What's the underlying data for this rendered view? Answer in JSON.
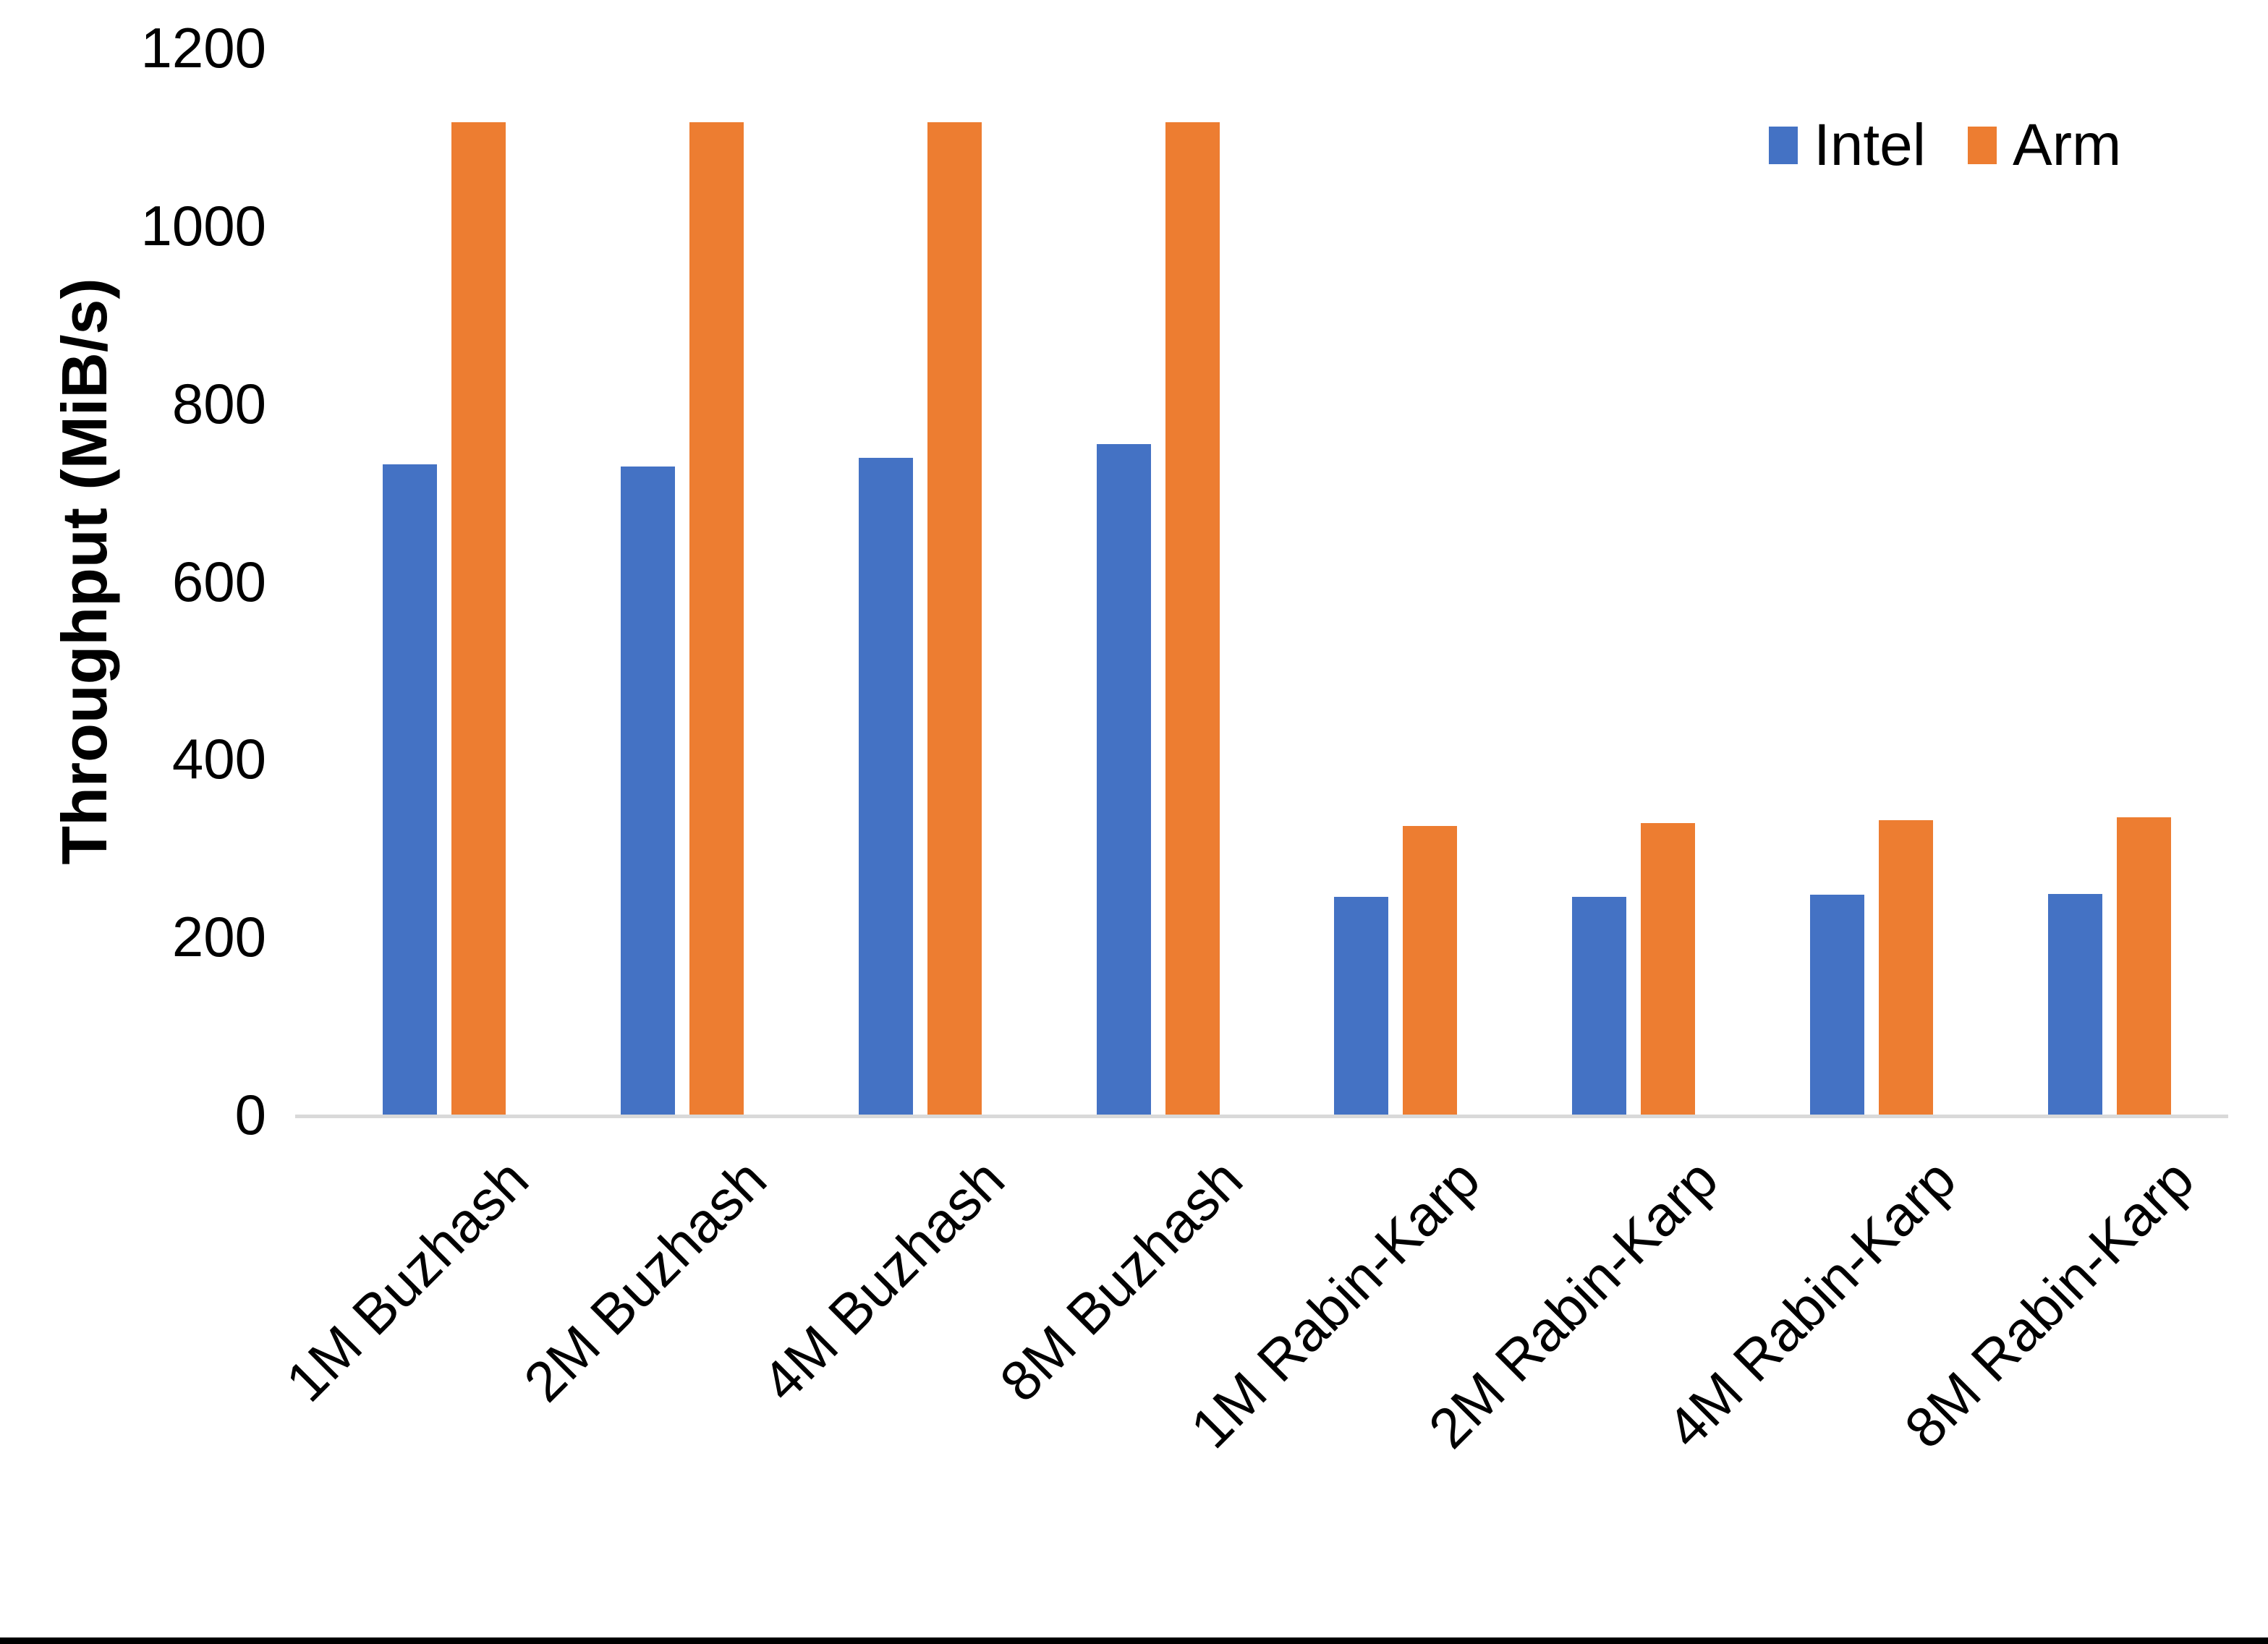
{
  "chart": {
    "ylabel": "Throughput (MiB/s)"
  },
  "chart_data": {
    "type": "bar",
    "categories": [
      "1M Buzhash",
      "2M Buzhash",
      "4M Buzhash",
      "8M Buzhash",
      "1M Rabin-Karp",
      "2M Rabin-Karp",
      "4M Rabin-Karp",
      "8M Rabin-Karp"
    ],
    "series": [
      {
        "name": "Intel",
        "color": "#4472C4",
        "values": [
          731,
          729,
          739,
          754,
          245,
          245,
          247,
          248
        ]
      },
      {
        "name": "Arm",
        "color": "#ED7D31",
        "values": [
          1116,
          1116,
          1116,
          1116,
          325,
          328,
          331,
          334
        ]
      }
    ],
    "title": "",
    "xlabel": "",
    "ylabel": "Throughput (MiB/s)",
    "ylim": [
      0,
      1200
    ],
    "yticks": [
      0,
      200,
      400,
      600,
      800,
      1000,
      1200
    ],
    "grid": false,
    "legend_position": "top-right",
    "axis_line_color": "#D9D9D9",
    "text_color": "#000000"
  }
}
